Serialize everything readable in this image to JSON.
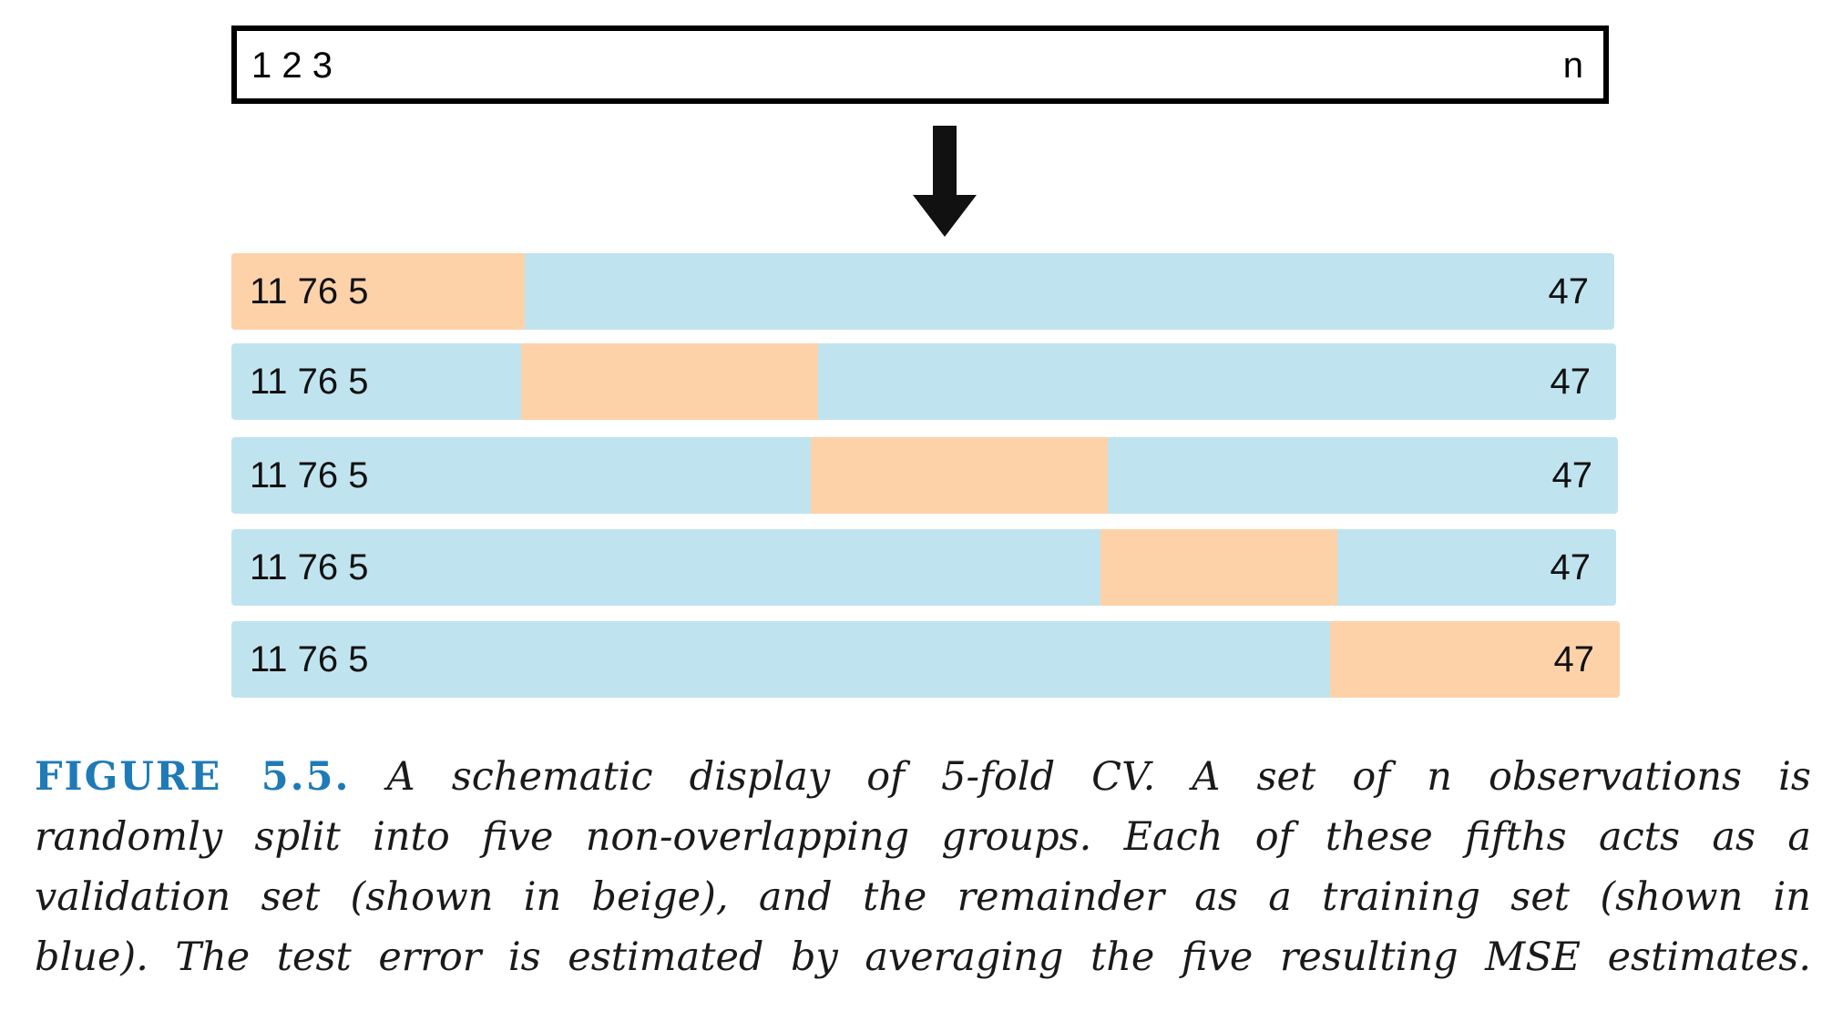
{
  "diagram": {
    "top_box": {
      "left_label": "1 2 3",
      "right_label": "n"
    },
    "arrow_icon": "down-arrow-icon",
    "folds": [
      {
        "left_label": "11 76 5",
        "right_label": "47",
        "holdout_index": 0
      },
      {
        "left_label": "11 76 5",
        "right_label": "47",
        "holdout_index": 1
      },
      {
        "left_label": "11 76 5",
        "right_label": "47",
        "holdout_index": 2
      },
      {
        "left_label": "11 76 5",
        "right_label": "47",
        "holdout_index": 3
      },
      {
        "left_label": "11 76 5",
        "right_label": "47",
        "holdout_index": 4
      }
    ],
    "colors": {
      "training": "#bfe4ef",
      "validation": "#fdd2a9",
      "figure_label": "#1f7ab8"
    }
  },
  "caption": {
    "figure_label": "FIGURE 5.5.",
    "line1": "A schematic display of 5-fold CV. A set of n observations is",
    "line2": "randomly split into five non-overlapping groups. Each of these fifths acts as a",
    "line3": "validation set (shown in beige), and the remainder as a training set (shown in",
    "line4": "blue). The test error is estimated by averaging the five resulting MSE estimates."
  }
}
